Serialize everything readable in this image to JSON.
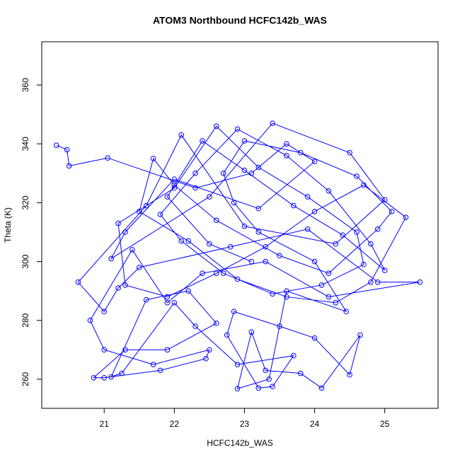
{
  "chart_data": {
    "type": "line",
    "markers": true,
    "title": "ATOM3 Northbound HCFC142b_WAS",
    "x_label": "HCFC142b_WAS",
    "y_label": "Theta (K)",
    "color": "#0000ff",
    "xlim": [
      20.11,
      25.76
    ],
    "ylim": [
      250.1,
      374.7
    ],
    "xticks": [
      21,
      22,
      23,
      24,
      25
    ],
    "yticks": [
      260,
      280,
      300,
      320,
      340,
      360
    ],
    "x": [
      20.32,
      20.47,
      20.5,
      21.05,
      22.3,
      23.1,
      23.6,
      24.0,
      23.2,
      22.0,
      21.3,
      21.1,
      22.5,
      23.4,
      24.5,
      25.0,
      24.3,
      23.0,
      22.1,
      21.6,
      20.63,
      21.0,
      21.2,
      21.5,
      22.8,
      23.9,
      24.9,
      25.5,
      24.2,
      23.3,
      22.4,
      21.9,
      21.4,
      20.8,
      21.0,
      21.7,
      22.5,
      22.45,
      21.8,
      21.0,
      20.85,
      21.3,
      21.9,
      22.6,
      22.2,
      21.6,
      21.1,
      21.25,
      22.0,
      22.3,
      22.9,
      23.7,
      23.4,
      23.2,
      22.75,
      22.85,
      23.5,
      24.0,
      24.5,
      24.65,
      24.1,
      23.8,
      23.3,
      23.1,
      22.9,
      23.35,
      23.6,
      24.45,
      24.0,
      23.2,
      22.85,
      22.7,
      23.0,
      23.8,
      24.6,
      25.1,
      24.9,
      24.2,
      23.5,
      22.6,
      22.0,
      21.7,
      21.5,
      22.2,
      22.9,
      23.6,
      24.3,
      24.8,
      25.3,
      24.7,
      24.0,
      23.3,
      22.6,
      21.9,
      21.3,
      21.2,
      22.0,
      22.6,
      23.2,
      23.9,
      24.6,
      24.7,
      24.1,
      23.4,
      22.7,
      22.1,
      21.8,
      22.3,
      22.9,
      23.6,
      24.2,
      24.8,
      25.0,
      24.4,
      23.7,
      23.0,
      22.4,
      21.9,
      22.5,
      23.1
    ],
    "series": [
      {
        "values": [
          339.5,
          338,
          332.5,
          335.2,
          325,
          330,
          340,
          334,
          318,
          328,
          310,
          301,
          322,
          347,
          337,
          321,
          306,
          312,
          343,
          319,
          293,
          283,
          291,
          298,
          305,
          311,
          293,
          293,
          288,
          300,
          296,
          286,
          304,
          280,
          270,
          265,
          270,
          267,
          263,
          260.5,
          260.5,
          270,
          270,
          279,
          290,
          287,
          260.8,
          262,
          286,
          278,
          265,
          268,
          257.5,
          257,
          275,
          283,
          278,
          274,
          261.5,
          275,
          257,
          262,
          263,
          276,
          256.8,
          260,
          290,
          283,
          300,
          310,
          320,
          330,
          341,
          337,
          329,
          317,
          311,
          296,
          302,
          314,
          326,
          335,
          317,
          307,
          294,
          288,
          286,
          293,
          315,
          326,
          317,
          305,
          296,
          288,
          292,
          313,
          325,
          346,
          332,
          322,
          310,
          299,
          292,
          289,
          296,
          307,
          316,
          330,
          345,
          336,
          324,
          306,
          297,
          309,
          319,
          331,
          341,
          322,
          306,
          300
        ]
      }
    ]
  }
}
